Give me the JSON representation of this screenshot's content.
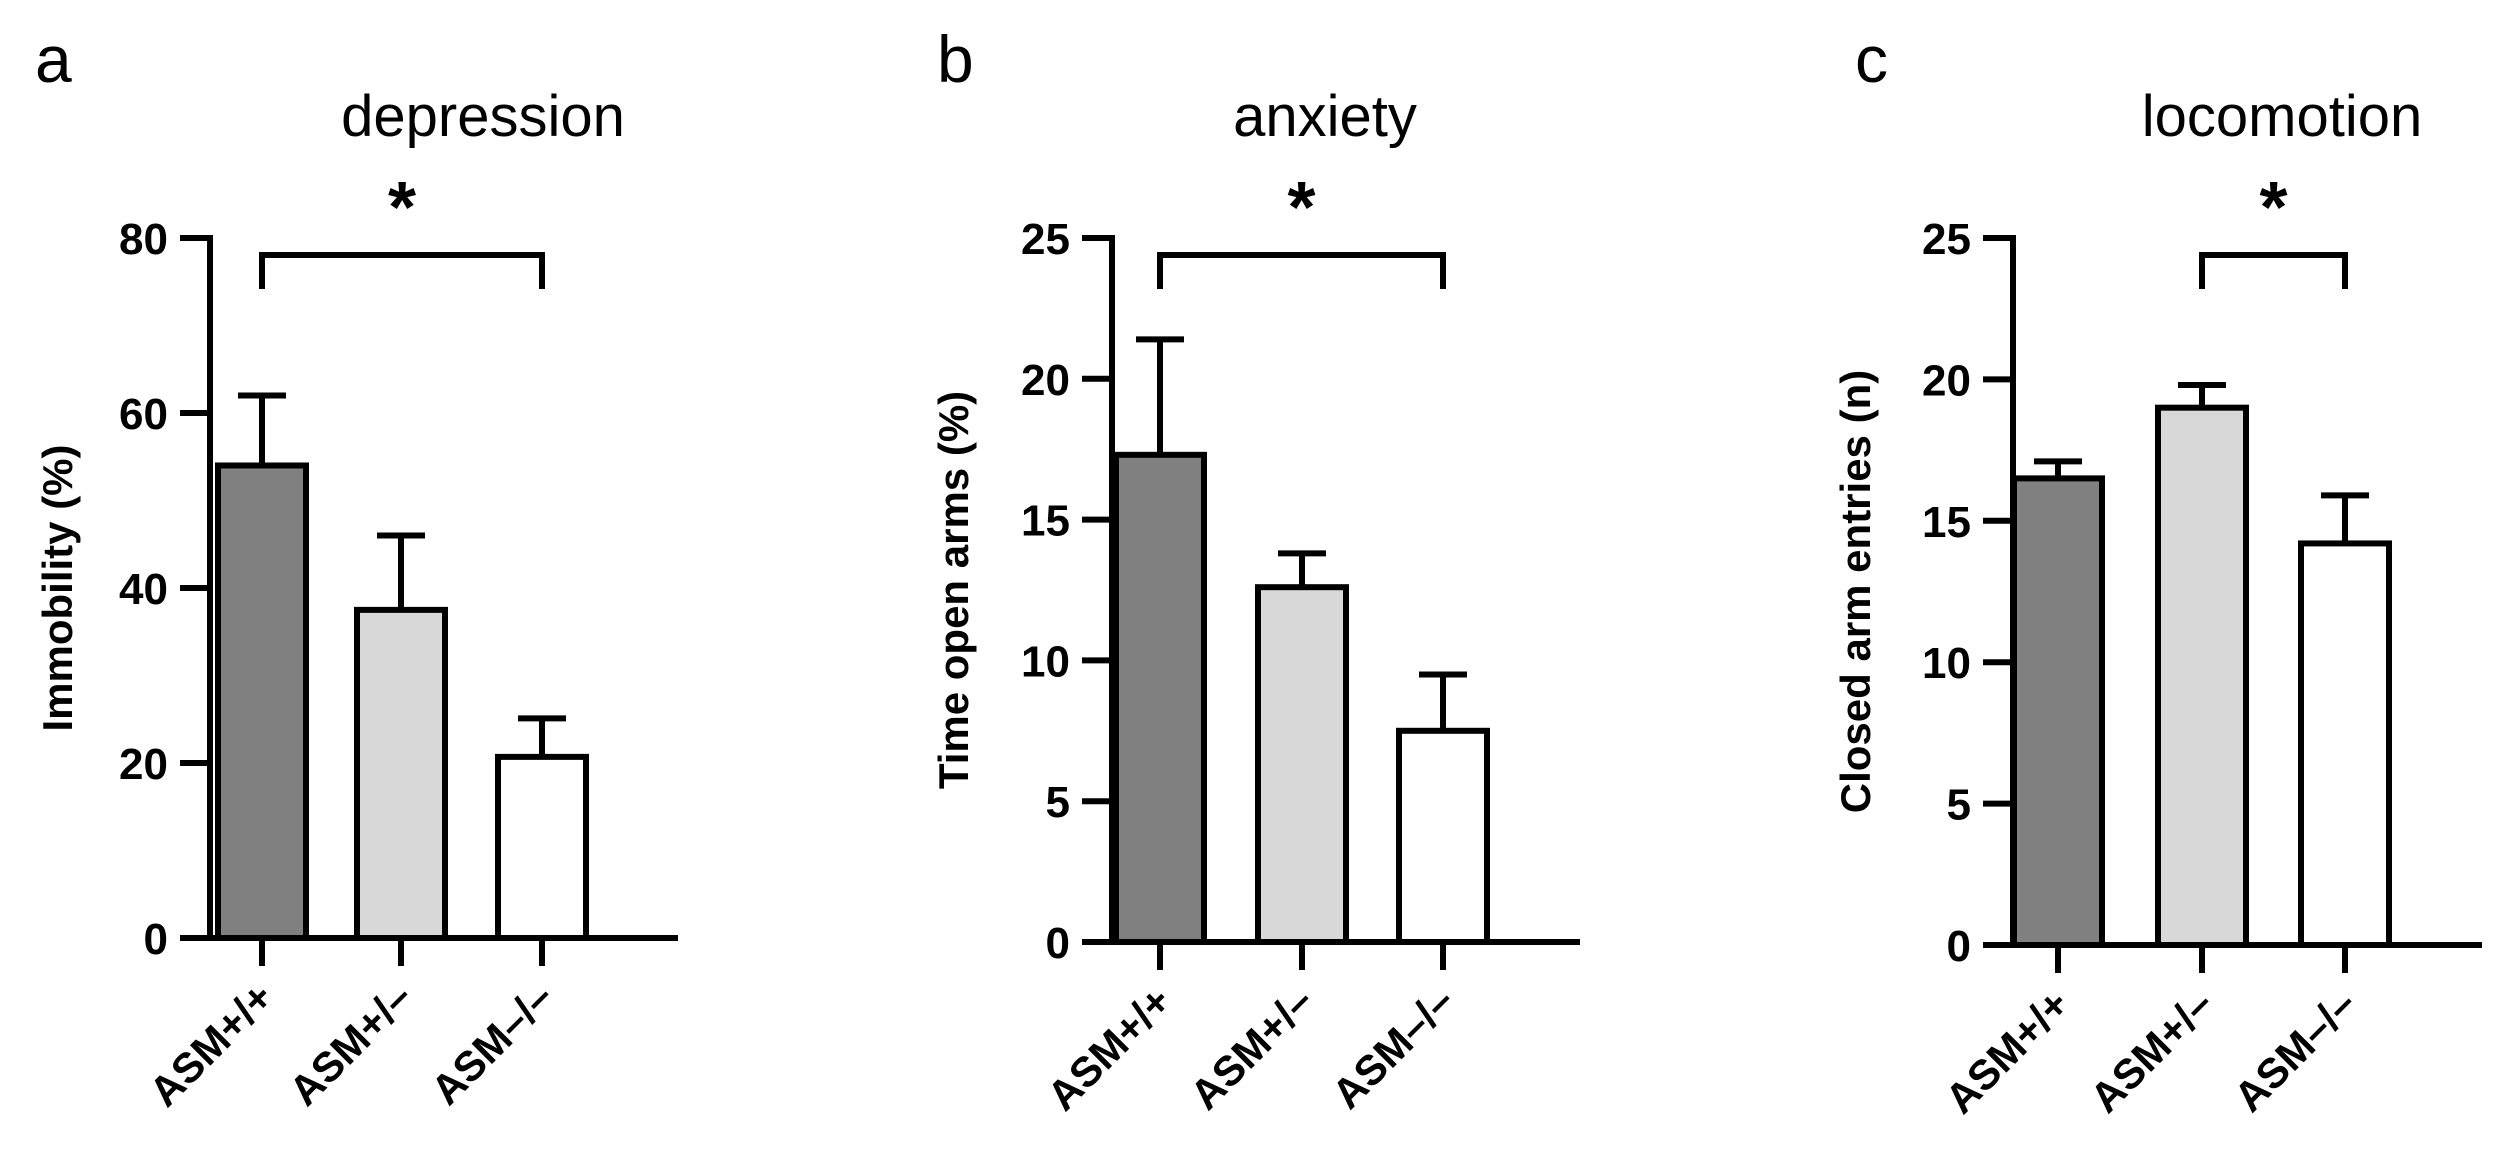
{
  "chart_data": [
    {
      "panel": "a",
      "type": "bar",
      "title": "depression",
      "ylabel": "Immobility  (%)",
      "xlabel": "",
      "ylim": [
        0,
        80
      ],
      "yticks": [
        "0",
        "20",
        "40",
        "60",
        "80"
      ],
      "categories": [
        "ASM+/+",
        "ASM+/–",
        "ASM–/–"
      ],
      "values": [
        54,
        37.5,
        20.7
      ],
      "errors": [
        8,
        8.5,
        4.4
      ],
      "bar_colors": [
        "#808080",
        "#d8d8d8",
        "#ffffff"
      ],
      "significance": {
        "from": 0,
        "to": 2,
        "label": "*"
      }
    },
    {
      "panel": "b",
      "type": "bar",
      "title": "anxiety",
      "ylabel": "Time open arms (%)",
      "xlabel": "",
      "ylim": [
        0,
        25
      ],
      "yticks": [
        "0",
        "5",
        "10",
        "15",
        "20",
        "25"
      ],
      "categories": [
        "ASM+/+",
        "ASM+/–",
        "ASM–/–"
      ],
      "values": [
        17.3,
        12.6,
        7.5
      ],
      "errors": [
        4.1,
        1.2,
        2.0
      ],
      "bar_colors": [
        "#808080",
        "#d8d8d8",
        "#ffffff"
      ],
      "significance": {
        "from": 0,
        "to": 2,
        "label": "*"
      }
    },
    {
      "panel": "c",
      "type": "bar",
      "title": "locomotion",
      "ylabel": "Closed arm entries (n)",
      "xlabel": "",
      "ylim": [
        0,
        25
      ],
      "yticks": [
        "0",
        "5",
        "10",
        "15",
        "20",
        "25"
      ],
      "categories": [
        "ASM+/+",
        "ASM+/–",
        "ASM–/–"
      ],
      "values": [
        16.5,
        19.0,
        14.2
      ],
      "errors": [
        0.6,
        0.8,
        1.7
      ],
      "bar_colors": [
        "#808080",
        "#d8d8d8",
        "#ffffff"
      ],
      "significance": {
        "from": 1,
        "to": 2,
        "label": "*"
      }
    }
  ]
}
